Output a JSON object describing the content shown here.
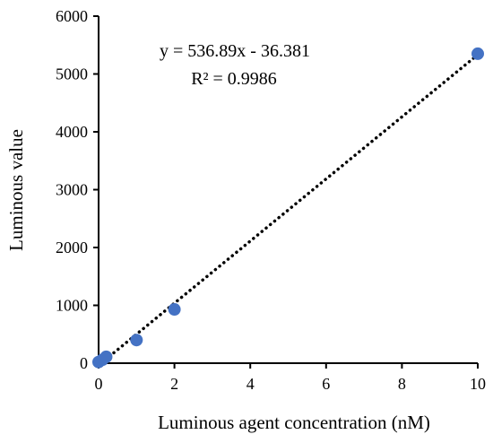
{
  "chart_data": {
    "type": "scatter",
    "xlabel": "Luminous agent concentration (nM)",
    "ylabel": "Luminous value",
    "xlim": [
      0,
      10
    ],
    "ylim": [
      0,
      6000
    ],
    "xticks": [
      "0",
      "2",
      "4",
      "6",
      "8",
      "10"
    ],
    "yticks": [
      "0",
      "1000",
      "2000",
      "3000",
      "4000",
      "5000",
      "6000"
    ],
    "grid": false,
    "points": [
      {
        "x": 0,
        "y": 20
      },
      {
        "x": 0.1,
        "y": 60
      },
      {
        "x": 0.2,
        "y": 110
      },
      {
        "x": 1,
        "y": 400
      },
      {
        "x": 2,
        "y": 930
      },
      {
        "x": 10,
        "y": 5350
      }
    ],
    "trendline": {
      "style": "dotted",
      "slope": 536.89,
      "intercept": -36.381
    },
    "annotations": {
      "equation": "y = 536.89x - 36.381",
      "r_squared": "R² = 0.9986"
    },
    "colors": {
      "marker": "#4472C4",
      "trendline": "#000000",
      "axis": "#000000"
    }
  }
}
